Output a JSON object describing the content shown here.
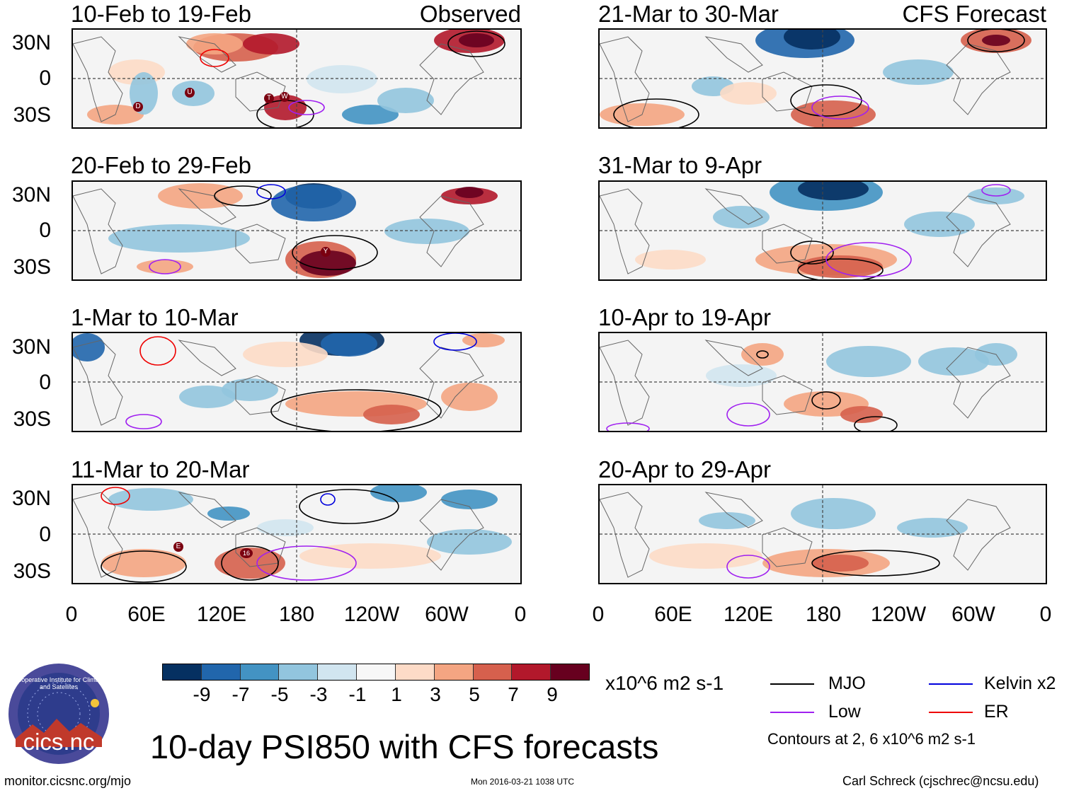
{
  "panels": [
    {
      "title": "10-Feb to 19-Feb",
      "tag": "Observed"
    },
    {
      "title": "20-Feb to 29-Feb",
      "tag": ""
    },
    {
      "title": "1-Mar to 10-Mar",
      "tag": ""
    },
    {
      "title": "11-Mar to 20-Mar",
      "tag": ""
    },
    {
      "title": "21-Mar to 30-Mar",
      "tag": "CFS Forecast"
    },
    {
      "title": "31-Mar to 9-Apr",
      "tag": ""
    },
    {
      "title": "10-Apr to 19-Apr",
      "tag": ""
    },
    {
      "title": "20-Apr to 29-Apr",
      "tag": ""
    }
  ],
  "lat_labels": [
    "30N",
    "0",
    "30S"
  ],
  "lon_labels": [
    "0",
    "60E",
    "120E",
    "180",
    "120W",
    "60W",
    "0"
  ],
  "colorbar": {
    "colors": [
      "#053061",
      "#2166ac",
      "#4393c3",
      "#92c5de",
      "#d1e5f0",
      "#f7f7f7",
      "#fddbc7",
      "#f4a582",
      "#d6604d",
      "#b2182b",
      "#67001f"
    ],
    "labels": [
      "-9",
      "-7",
      "-5",
      "-3",
      "-1",
      "1",
      "3",
      "5",
      "7",
      "9"
    ],
    "units": "x10^6 m2 s-1"
  },
  "legend": {
    "mjo": "MJO",
    "kelvin": "Kelvin x2",
    "low": "Low",
    "er": "ER",
    "mjo_color": "#000000",
    "kelvin_color": "#0000dd",
    "low_color": "#a020f0",
    "er_color": "#ee0000",
    "contours_note": "Contours at 2, 6 x10^6 m2 s-1"
  },
  "main_title": "10-day PSI850 with CFS forecasts",
  "logo_text": "cics.nc",
  "logo_ring": "Cooperative Institute for Climate and Satellites",
  "footer": {
    "url": "monitor.cicsnc.org/mjo",
    "timestamp": "Mon 2016-03-21 1038 UTC",
    "author": "Carl Schreck (cjschrec@ncsu.edu)"
  },
  "storm_markers": [
    {
      "panel": 0,
      "label": "D"
    },
    {
      "panel": 0,
      "label": "U"
    },
    {
      "panel": 0,
      "label": "T"
    },
    {
      "panel": 0,
      "label": "W"
    },
    {
      "panel": 1,
      "label": "Y"
    },
    {
      "panel": 3,
      "label": "E"
    },
    {
      "panel": 3,
      "label": "16"
    }
  ]
}
